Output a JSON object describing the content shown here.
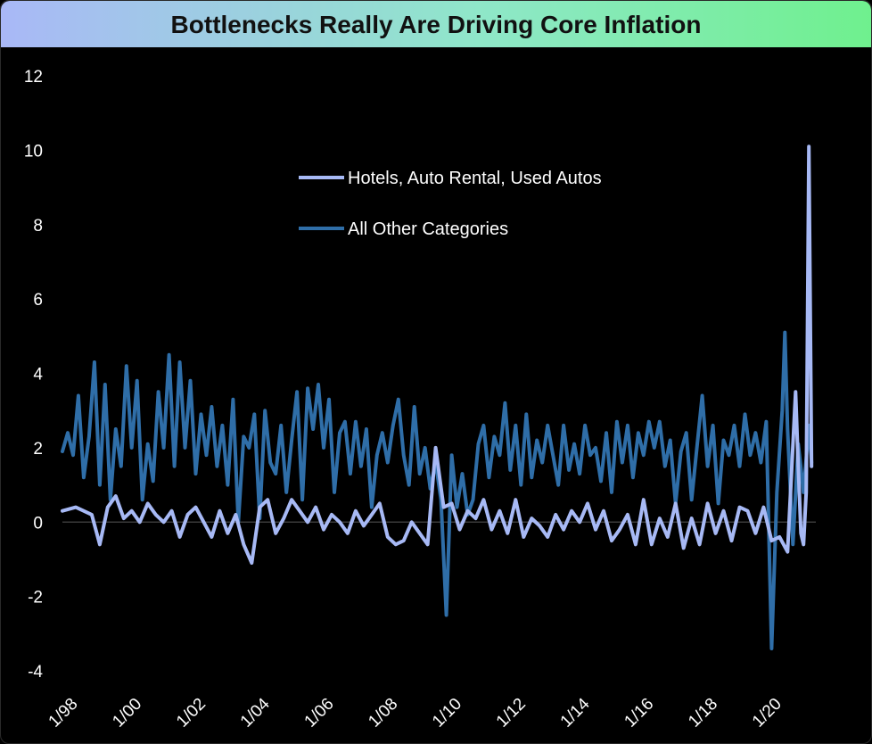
{
  "chart_data": {
    "type": "line",
    "title": "Bottlenecks Really Are Driving Core Inflation",
    "xlabel": "",
    "ylabel": "",
    "ylim": [
      -4,
      12
    ],
    "y_ticks": [
      "12",
      "10",
      "8",
      "6",
      "4",
      "2",
      "0",
      "-2",
      "-4"
    ],
    "x_ticks": [
      "1/98",
      "1/00",
      "1/02",
      "1/04",
      "1/06",
      "1/08",
      "1/10",
      "1/12",
      "1/14",
      "1/16",
      "1/18",
      "1/20"
    ],
    "grid": false,
    "legend_position": "top-center",
    "series": [
      {
        "name": "Hotels, Auto Rental, Used Autos",
        "color": "#a7b9f5",
        "points": [
          [
            "1998-01",
            0.3
          ],
          [
            "1998-06",
            0.4
          ],
          [
            "1998-12",
            0.2
          ],
          [
            "1999-03",
            -0.6
          ],
          [
            "1999-06",
            0.4
          ],
          [
            "1999-09",
            0.7
          ],
          [
            "1999-12",
            0.1
          ],
          [
            "2000-03",
            0.3
          ],
          [
            "2000-06",
            0.0
          ],
          [
            "2000-09",
            0.5
          ],
          [
            "2000-12",
            0.2
          ],
          [
            "2001-03",
            0.0
          ],
          [
            "2001-06",
            0.3
          ],
          [
            "2001-09",
            -0.4
          ],
          [
            "2001-12",
            0.2
          ],
          [
            "2002-03",
            0.4
          ],
          [
            "2002-06",
            0.0
          ],
          [
            "2002-09",
            -0.4
          ],
          [
            "2002-12",
            0.3
          ],
          [
            "2003-03",
            -0.3
          ],
          [
            "2003-06",
            0.2
          ],
          [
            "2003-09",
            -0.6
          ],
          [
            "2003-12",
            -1.1
          ],
          [
            "2004-03",
            0.4
          ],
          [
            "2004-06",
            0.6
          ],
          [
            "2004-09",
            -0.3
          ],
          [
            "2004-12",
            0.1
          ],
          [
            "2005-03",
            0.6
          ],
          [
            "2005-06",
            0.3
          ],
          [
            "2005-09",
            0.0
          ],
          [
            "2005-12",
            0.4
          ],
          [
            "2006-03",
            -0.2
          ],
          [
            "2006-06",
            0.2
          ],
          [
            "2006-09",
            0.0
          ],
          [
            "2006-12",
            -0.3
          ],
          [
            "2007-03",
            0.3
          ],
          [
            "2007-06",
            -0.1
          ],
          [
            "2007-09",
            0.2
          ],
          [
            "2007-12",
            0.5
          ],
          [
            "2008-03",
            -0.4
          ],
          [
            "2008-06",
            -0.6
          ],
          [
            "2008-09",
            -0.5
          ],
          [
            "2008-12",
            0.0
          ],
          [
            "2009-03",
            -0.3
          ],
          [
            "2009-06",
            -0.6
          ],
          [
            "2009-09",
            2.0
          ],
          [
            "2009-12",
            0.4
          ],
          [
            "2010-03",
            0.5
          ],
          [
            "2010-06",
            -0.2
          ],
          [
            "2010-09",
            0.3
          ],
          [
            "2010-12",
            0.1
          ],
          [
            "2011-03",
            0.6
          ],
          [
            "2011-06",
            -0.2
          ],
          [
            "2011-09",
            0.3
          ],
          [
            "2011-12",
            -0.3
          ],
          [
            "2012-03",
            0.6
          ],
          [
            "2012-06",
            -0.4
          ],
          [
            "2012-09",
            0.1
          ],
          [
            "2012-12",
            -0.1
          ],
          [
            "2013-03",
            -0.4
          ],
          [
            "2013-06",
            0.2
          ],
          [
            "2013-09",
            -0.2
          ],
          [
            "2013-12",
            0.3
          ],
          [
            "2014-03",
            0.0
          ],
          [
            "2014-06",
            0.5
          ],
          [
            "2014-09",
            -0.2
          ],
          [
            "2014-12",
            0.3
          ],
          [
            "2015-03",
            -0.5
          ],
          [
            "2015-06",
            -0.2
          ],
          [
            "2015-09",
            0.2
          ],
          [
            "2015-12",
            -0.6
          ],
          [
            "2016-03",
            0.6
          ],
          [
            "2016-06",
            -0.6
          ],
          [
            "2016-09",
            0.1
          ],
          [
            "2016-12",
            -0.4
          ],
          [
            "2017-03",
            0.5
          ],
          [
            "2017-06",
            -0.7
          ],
          [
            "2017-09",
            0.1
          ],
          [
            "2017-12",
            -0.6
          ],
          [
            "2018-03",
            0.5
          ],
          [
            "2018-06",
            -0.3
          ],
          [
            "2018-09",
            0.3
          ],
          [
            "2018-12",
            -0.5
          ],
          [
            "2019-03",
            0.4
          ],
          [
            "2019-06",
            0.3
          ],
          [
            "2019-09",
            -0.3
          ],
          [
            "2019-12",
            0.4
          ],
          [
            "2020-03",
            -0.5
          ],
          [
            "2020-06",
            -0.4
          ],
          [
            "2020-09",
            -0.8
          ],
          [
            "2020-12",
            3.5
          ],
          [
            "2021-01",
            1.5
          ],
          [
            "2021-02",
            -0.3
          ],
          [
            "2021-03",
            -0.6
          ],
          [
            "2021-04",
            0.8
          ],
          [
            "2021-05",
            10.1
          ],
          [
            "2021-06",
            1.5
          ]
        ]
      },
      {
        "name": "All Other Categories",
        "color": "#2f6ea8",
        "points": [
          [
            "1998-01",
            1.9
          ],
          [
            "1998-03",
            2.4
          ],
          [
            "1998-05",
            1.8
          ],
          [
            "1998-07",
            3.4
          ],
          [
            "1998-09",
            1.2
          ],
          [
            "1998-11",
            2.3
          ],
          [
            "1999-01",
            4.3
          ],
          [
            "1999-03",
            1.0
          ],
          [
            "1999-05",
            3.7
          ],
          [
            "1999-07",
            0.6
          ],
          [
            "1999-09",
            2.5
          ],
          [
            "1999-11",
            1.5
          ],
          [
            "2000-01",
            4.2
          ],
          [
            "2000-03",
            2.0
          ],
          [
            "2000-05",
            3.8
          ],
          [
            "2000-07",
            0.6
          ],
          [
            "2000-09",
            2.1
          ],
          [
            "2000-11",
            1.1
          ],
          [
            "2001-01",
            3.5
          ],
          [
            "2001-03",
            2.0
          ],
          [
            "2001-05",
            4.5
          ],
          [
            "2001-07",
            1.5
          ],
          [
            "2001-09",
            4.3
          ],
          [
            "2001-11",
            2.0
          ],
          [
            "2002-01",
            3.8
          ],
          [
            "2002-03",
            1.3
          ],
          [
            "2002-05",
            2.9
          ],
          [
            "2002-07",
            1.8
          ],
          [
            "2002-09",
            3.1
          ],
          [
            "2002-11",
            1.5
          ],
          [
            "2003-01",
            2.6
          ],
          [
            "2003-03",
            1.0
          ],
          [
            "2003-05",
            3.3
          ],
          [
            "2003-07",
            0.0
          ],
          [
            "2003-09",
            2.3
          ],
          [
            "2003-11",
            2.0
          ],
          [
            "2004-01",
            2.9
          ],
          [
            "2004-03",
            0.1
          ],
          [
            "2004-05",
            3.0
          ],
          [
            "2004-07",
            1.6
          ],
          [
            "2004-09",
            1.3
          ],
          [
            "2004-11",
            2.6
          ],
          [
            "2005-01",
            0.8
          ],
          [
            "2005-03",
            2.2
          ],
          [
            "2005-05",
            3.5
          ],
          [
            "2005-07",
            0.6
          ],
          [
            "2005-09",
            3.6
          ],
          [
            "2005-11",
            2.5
          ],
          [
            "2006-01",
            3.7
          ],
          [
            "2006-03",
            2.0
          ],
          [
            "2006-05",
            3.3
          ],
          [
            "2006-07",
            0.8
          ],
          [
            "2006-09",
            2.4
          ],
          [
            "2006-11",
            2.7
          ],
          [
            "2007-01",
            1.3
          ],
          [
            "2007-03",
            2.7
          ],
          [
            "2007-05",
            1.5
          ],
          [
            "2007-07",
            2.5
          ],
          [
            "2007-09",
            0.4
          ],
          [
            "2007-11",
            1.8
          ],
          [
            "2008-01",
            2.4
          ],
          [
            "2008-03",
            1.6
          ],
          [
            "2008-05",
            2.6
          ],
          [
            "2008-07",
            3.3
          ],
          [
            "2008-09",
            1.8
          ],
          [
            "2008-11",
            1.0
          ],
          [
            "2009-01",
            3.1
          ],
          [
            "2009-03",
            1.3
          ],
          [
            "2009-05",
            2.0
          ],
          [
            "2009-07",
            0.9
          ],
          [
            "2009-09",
            1.6
          ],
          [
            "2009-11",
            0.6
          ],
          [
            "2010-01",
            -2.5
          ],
          [
            "2010-03",
            1.8
          ],
          [
            "2010-05",
            0.4
          ],
          [
            "2010-07",
            1.3
          ],
          [
            "2010-09",
            0.2
          ],
          [
            "2010-11",
            0.6
          ],
          [
            "2011-01",
            2.1
          ],
          [
            "2011-03",
            2.6
          ],
          [
            "2011-05",
            1.2
          ],
          [
            "2011-07",
            2.3
          ],
          [
            "2011-09",
            1.8
          ],
          [
            "2011-11",
            3.2
          ],
          [
            "2012-01",
            1.4
          ],
          [
            "2012-03",
            2.6
          ],
          [
            "2012-05",
            1.0
          ],
          [
            "2012-07",
            2.9
          ],
          [
            "2012-09",
            1.2
          ],
          [
            "2012-11",
            2.2
          ],
          [
            "2013-01",
            1.6
          ],
          [
            "2013-03",
            2.6
          ],
          [
            "2013-05",
            1.8
          ],
          [
            "2013-07",
            1.0
          ],
          [
            "2013-09",
            2.6
          ],
          [
            "2013-11",
            1.4
          ],
          [
            "2014-01",
            2.1
          ],
          [
            "2014-03",
            1.3
          ],
          [
            "2014-05",
            2.6
          ],
          [
            "2014-07",
            1.8
          ],
          [
            "2014-09",
            2.0
          ],
          [
            "2014-11",
            1.1
          ],
          [
            "2015-01",
            2.4
          ],
          [
            "2015-03",
            0.8
          ],
          [
            "2015-05",
            2.7
          ],
          [
            "2015-07",
            1.6
          ],
          [
            "2015-09",
            2.6
          ],
          [
            "2015-11",
            1.2
          ],
          [
            "2016-01",
            2.4
          ],
          [
            "2016-03",
            1.8
          ],
          [
            "2016-05",
            2.7
          ],
          [
            "2016-07",
            2.0
          ],
          [
            "2016-09",
            2.7
          ],
          [
            "2016-11",
            1.5
          ],
          [
            "2017-01",
            2.2
          ],
          [
            "2017-03",
            0.5
          ],
          [
            "2017-05",
            1.9
          ],
          [
            "2017-07",
            2.4
          ],
          [
            "2017-09",
            0.6
          ],
          [
            "2017-11",
            2.0
          ],
          [
            "2018-01",
            3.4
          ],
          [
            "2018-03",
            1.5
          ],
          [
            "2018-05",
            2.6
          ],
          [
            "2018-07",
            0.5
          ],
          [
            "2018-09",
            2.2
          ],
          [
            "2018-11",
            1.8
          ],
          [
            "2019-01",
            2.6
          ],
          [
            "2019-03",
            1.5
          ],
          [
            "2019-05",
            2.9
          ],
          [
            "2019-07",
            1.8
          ],
          [
            "2019-09",
            2.4
          ],
          [
            "2019-11",
            1.6
          ],
          [
            "2020-01",
            2.7
          ],
          [
            "2020-03",
            -3.4
          ],
          [
            "2020-05",
            0.8
          ],
          [
            "2020-07",
            3.0
          ],
          [
            "2020-08",
            5.1
          ],
          [
            "2020-09",
            2.5
          ],
          [
            "2020-11",
            -0.6
          ],
          [
            "2021-01",
            2.1
          ],
          [
            "2021-03",
            0.8
          ],
          [
            "2021-05",
            2.6
          ],
          [
            "2021-06",
            1.6
          ]
        ]
      }
    ]
  }
}
